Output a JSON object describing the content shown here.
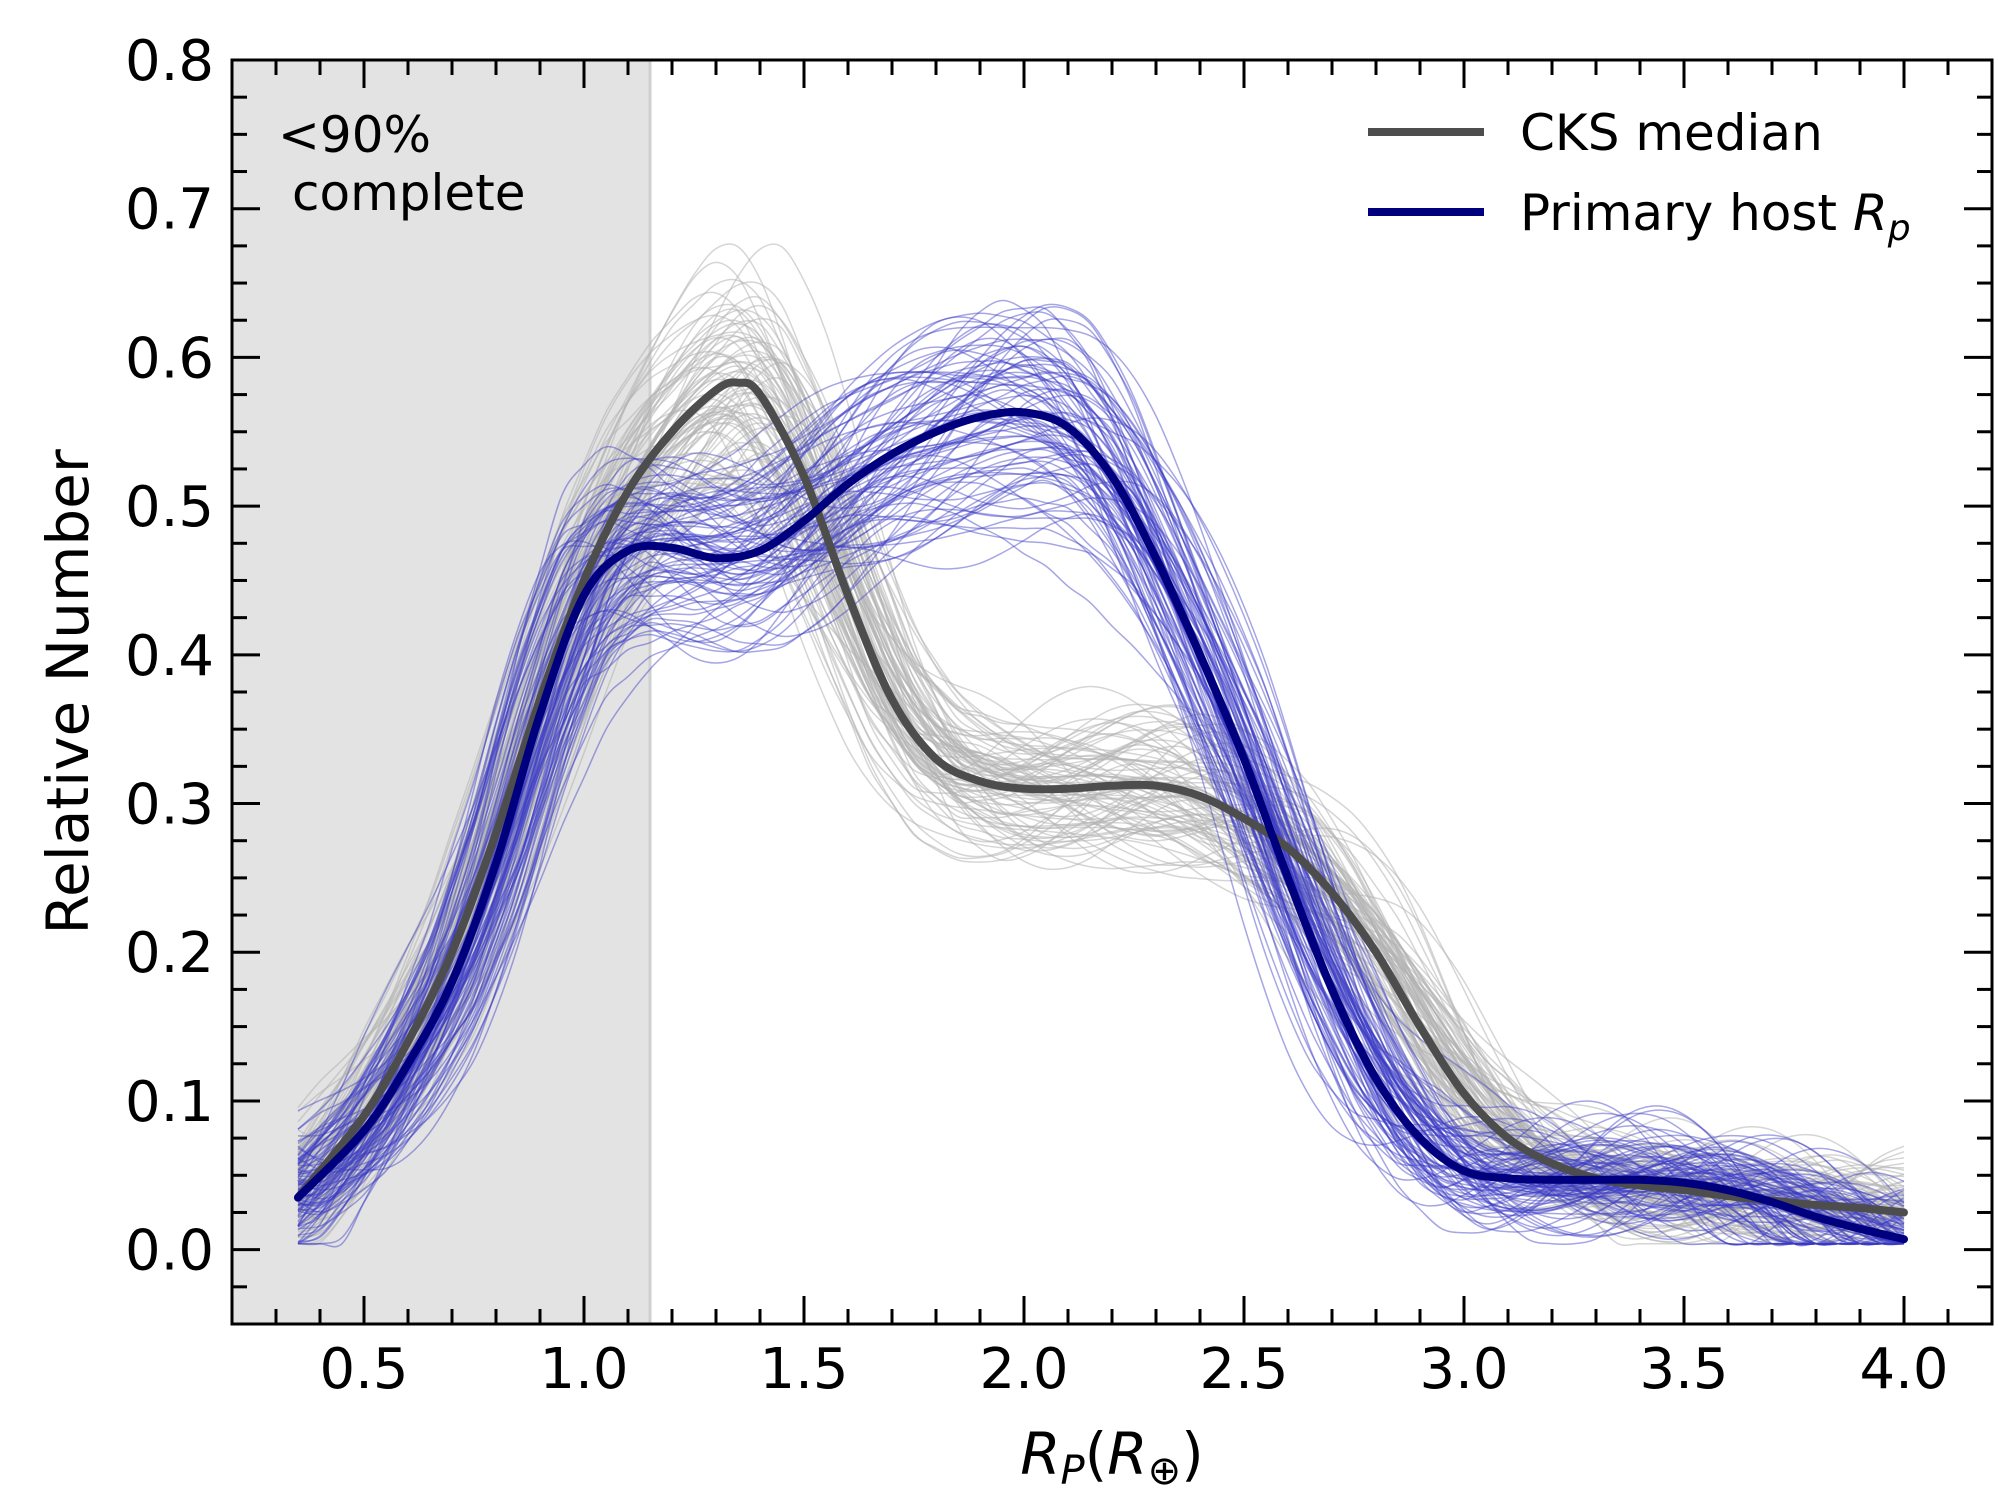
{
  "chart_data": {
    "type": "line",
    "title": "",
    "xlabel": "R_P(R_⊕)",
    "ylabel": "Relative Number",
    "xlim": [
      0.2,
      4.2
    ],
    "ylim": [
      -0.05,
      0.8
    ],
    "xticks": [
      0.5,
      1.0,
      1.5,
      2.0,
      2.5,
      3.0,
      3.5,
      4.0
    ],
    "xtick_labels": [
      "0.5",
      "1.0",
      "1.5",
      "2.0",
      "2.5",
      "3.0",
      "3.5",
      "4.0"
    ],
    "yticks": [
      0.0,
      0.1,
      0.2,
      0.3,
      0.4,
      0.5,
      0.6,
      0.7,
      0.8
    ],
    "ytick_labels": [
      "0.0",
      "0.1",
      "0.2",
      "0.3",
      "0.4",
      "0.5",
      "0.6",
      "0.7",
      "0.8"
    ],
    "grid": false,
    "legend_position": "top-right",
    "shaded_region": {
      "x_range": [
        0.2,
        1.15
      ],
      "color": "#e3e3e3",
      "annotation_lines": [
        "<90%",
        "complete"
      ]
    },
    "series": [
      {
        "name": "CKS median",
        "color": "#4d4d4d",
        "x": [
          0.35,
          0.5,
          0.6,
          0.7,
          0.8,
          0.9,
          1.0,
          1.1,
          1.2,
          1.3,
          1.35,
          1.4,
          1.5,
          1.6,
          1.7,
          1.8,
          1.9,
          2.0,
          2.1,
          2.2,
          2.3,
          2.4,
          2.5,
          2.6,
          2.7,
          2.8,
          2.9,
          3.0,
          3.1,
          3.2,
          3.3,
          3.4,
          3.5,
          3.6,
          3.7,
          3.8,
          3.9,
          4.0
        ],
        "y": [
          0.035,
          0.09,
          0.14,
          0.2,
          0.28,
          0.37,
          0.45,
          0.51,
          0.55,
          0.578,
          0.583,
          0.575,
          0.52,
          0.44,
          0.37,
          0.33,
          0.315,
          0.31,
          0.31,
          0.312,
          0.312,
          0.305,
          0.29,
          0.27,
          0.24,
          0.2,
          0.15,
          0.105,
          0.075,
          0.058,
          0.048,
          0.043,
          0.04,
          0.036,
          0.033,
          0.03,
          0.028,
          0.025
        ]
      },
      {
        "name": "Primary host R_p",
        "color": "#00007f",
        "x": [
          0.35,
          0.5,
          0.6,
          0.7,
          0.8,
          0.9,
          1.0,
          1.1,
          1.2,
          1.3,
          1.4,
          1.5,
          1.6,
          1.7,
          1.8,
          1.9,
          2.0,
          2.1,
          2.2,
          2.3,
          2.4,
          2.5,
          2.6,
          2.7,
          2.8,
          2.9,
          3.0,
          3.1,
          3.2,
          3.3,
          3.4,
          3.5,
          3.6,
          3.7,
          3.8,
          3.9,
          4.0
        ],
        "y": [
          0.035,
          0.08,
          0.125,
          0.18,
          0.26,
          0.36,
          0.44,
          0.47,
          0.472,
          0.465,
          0.47,
          0.49,
          0.515,
          0.535,
          0.55,
          0.56,
          0.563,
          0.553,
          0.52,
          0.465,
          0.4,
          0.33,
          0.25,
          0.175,
          0.115,
          0.075,
          0.053,
          0.048,
          0.047,
          0.047,
          0.047,
          0.045,
          0.04,
          0.032,
          0.022,
          0.014,
          0.007
        ]
      }
    ],
    "background_samples": [
      {
        "group": "CKS",
        "color": "#b3b3b3",
        "count": 90
      },
      {
        "group": "Primary host",
        "color": "#3a3ac6",
        "count": 90
      }
    ]
  },
  "legend": {
    "entries": [
      {
        "label": "CKS median",
        "color": "#4d4d4d"
      },
      {
        "label_main": "Primary host ",
        "label_var": "R",
        "label_sub": "p",
        "color": "#00007f"
      }
    ]
  },
  "axes": {
    "xlabel_var": "R",
    "xlabel_sub": "P",
    "xlabel_paren_open": "(",
    "xlabel_inner_var": "R",
    "xlabel_inner_sub": "⊕",
    "xlabel_paren_close": ")"
  }
}
